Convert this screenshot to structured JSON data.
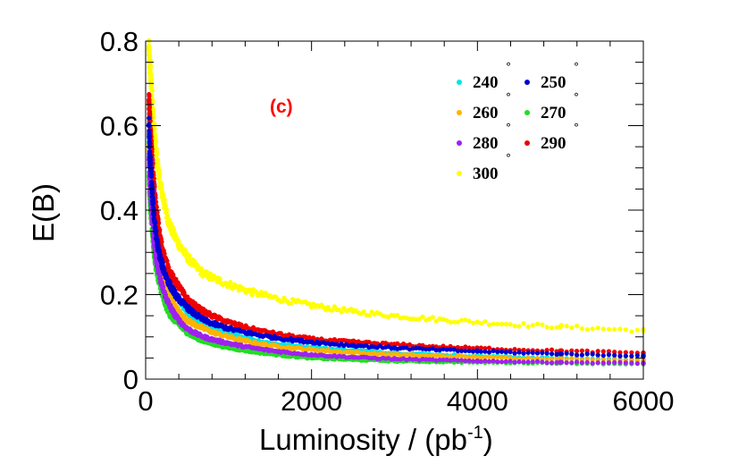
{
  "chart_data": {
    "type": "scatter",
    "title": "",
    "annotation": "(c)",
    "annotation_color": "#ff0000",
    "xlabel": "Luminosity / (pb",
    "xlabel_sup": "-1",
    "xlabel_close": ")",
    "ylabel": "E(B)",
    "xlim": [
      0,
      6000
    ],
    "ylim": [
      0,
      0.8
    ],
    "x_ticks": [
      0,
      2000,
      4000,
      6000
    ],
    "x_tick_labels": [
      "0",
      "2000",
      "4000",
      "6000"
    ],
    "y_ticks": [
      0,
      0.2,
      0.4,
      0.6,
      0.8
    ],
    "y_tick_labels": [
      "0",
      "0.2",
      "0.4",
      "0.6",
      "0.8"
    ],
    "grid": false,
    "legend_position": "top-right",
    "degree_symbol": "°",
    "x": [
      40,
      60,
      80,
      100,
      150,
      200,
      300,
      400,
      500,
      700,
      1000,
      1500,
      2000,
      2500,
      3000,
      4000,
      5000,
      6000
    ],
    "series": [
      {
        "name": "240",
        "color": "#00e5e5",
        "values": [
          0.55,
          0.48,
          0.42,
          0.37,
          0.3,
          0.26,
          0.21,
          0.19,
          0.16,
          0.13,
          0.11,
          0.085,
          0.075,
          0.068,
          0.062,
          0.055,
          0.05,
          0.046
        ]
      },
      {
        "name": "250",
        "color": "#0000d0",
        "values": [
          0.6,
          0.5,
          0.44,
          0.39,
          0.31,
          0.27,
          0.22,
          0.19,
          0.17,
          0.14,
          0.12,
          0.1,
          0.088,
          0.08,
          0.074,
          0.066,
          0.06,
          0.055
        ]
      },
      {
        "name": "260",
        "color": "#ffb300",
        "values": [
          0.54,
          0.46,
          0.4,
          0.35,
          0.28,
          0.24,
          0.19,
          0.16,
          0.14,
          0.12,
          0.1,
          0.08,
          0.07,
          0.063,
          0.058,
          0.052,
          0.048,
          0.045
        ]
      },
      {
        "name": "270",
        "color": "#22dd22",
        "values": [
          0.48,
          0.4,
          0.35,
          0.3,
          0.24,
          0.2,
          0.15,
          0.13,
          0.11,
          0.09,
          0.075,
          0.06,
          0.05,
          0.046,
          0.043,
          0.04,
          0.038,
          0.036
        ]
      },
      {
        "name": "280",
        "color": "#a020f0",
        "values": [
          0.52,
          0.44,
          0.38,
          0.33,
          0.26,
          0.22,
          0.17,
          0.14,
          0.12,
          0.1,
          0.085,
          0.068,
          0.058,
          0.052,
          0.048,
          0.043,
          0.04,
          0.038
        ]
      },
      {
        "name": "290",
        "color": "#ee0000",
        "values": [
          0.66,
          0.58,
          0.52,
          0.46,
          0.37,
          0.31,
          0.25,
          0.22,
          0.19,
          0.16,
          0.135,
          0.11,
          0.095,
          0.088,
          0.082,
          0.073,
          0.067,
          0.062
        ]
      },
      {
        "name": "300",
        "color": "#ffff00",
        "values": [
          0.78,
          0.72,
          0.66,
          0.6,
          0.5,
          0.44,
          0.36,
          0.32,
          0.29,
          0.25,
          0.225,
          0.195,
          0.175,
          0.16,
          0.15,
          0.135,
          0.124,
          0.115
        ]
      }
    ]
  }
}
